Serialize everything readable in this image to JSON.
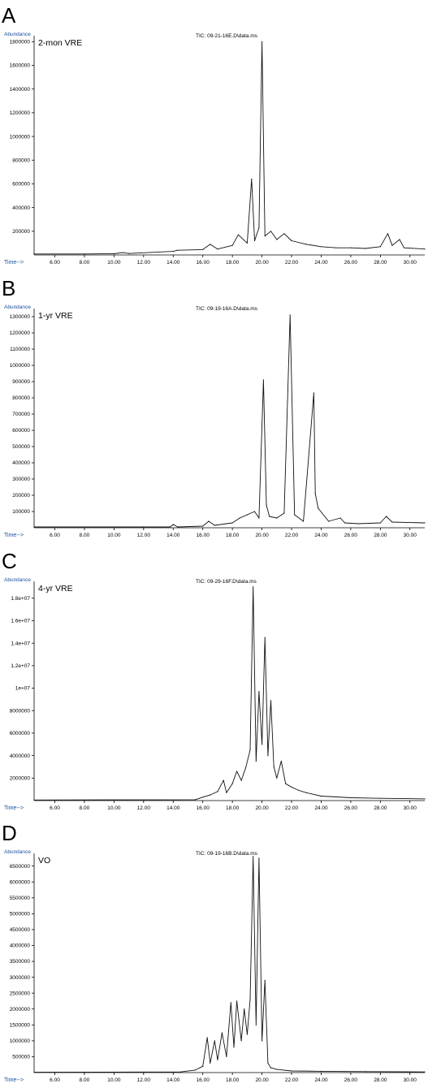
{
  "chart_data": [
    {
      "type": "line",
      "panel": "A",
      "sample_label": "2-mon VRE",
      "tic_label": "TIC: 09-21-16E.D\\data.ms",
      "ylabel": "Abundance",
      "xlabel": "Time-->",
      "xlim": [
        4.6,
        31.0
      ],
      "ylim": [
        0,
        1850000
      ],
      "xticks": [
        "6.00",
        "8.00",
        "10.00",
        "12.00",
        "14.00",
        "16.00",
        "18.00",
        "20.00",
        "22.00",
        "24.00",
        "26.00",
        "28.00",
        "30.00"
      ],
      "yticks": [
        "200000",
        "400000",
        "600000",
        "800000",
        "1000000",
        "1200000",
        "1400000",
        "1600000",
        "1800000"
      ],
      "x": [
        4.6,
        8.0,
        10.0,
        10.6,
        11.0,
        14.0,
        14.3,
        16.0,
        16.5,
        17.0,
        18.0,
        18.4,
        19.0,
        19.3,
        19.5,
        19.8,
        20.0,
        20.2,
        20.6,
        21.0,
        21.5,
        22.0,
        23.0,
        24.0,
        25.0,
        26.0,
        27.0,
        28.0,
        28.5,
        28.8,
        29.3,
        29.6,
        31.0
      ],
      "values": [
        8000,
        8000,
        10000,
        20000,
        12000,
        30000,
        40000,
        45000,
        90000,
        50000,
        80000,
        170000,
        100000,
        640000,
        120000,
        230000,
        1800000,
        160000,
        200000,
        130000,
        180000,
        120000,
        90000,
        70000,
        60000,
        60000,
        55000,
        70000,
        180000,
        80000,
        130000,
        60000,
        50000
      ]
    },
    {
      "type": "line",
      "panel": "B",
      "sample_label": "1-yr VRE",
      "tic_label": "TIC: 09-19-16A.D\\data.ms",
      "ylabel": "Abundance",
      "xlabel": "Time-->",
      "xlim": [
        4.6,
        31.0
      ],
      "ylim": [
        0,
        1350000
      ],
      "xticks": [
        "6.00",
        "8.00",
        "10.00",
        "12.00",
        "14.00",
        "16.00",
        "18.00",
        "20.00",
        "22.00",
        "24.00",
        "26.00",
        "28.00",
        "30.00"
      ],
      "yticks": [
        "100000",
        "200000",
        "300000",
        "400000",
        "500000",
        "600000",
        "700000",
        "800000",
        "900000",
        "1000000",
        "1100000",
        "1200000",
        "1300000"
      ],
      "x": [
        4.6,
        12.0,
        13.8,
        14.0,
        14.3,
        16.0,
        16.4,
        16.8,
        18.0,
        18.5,
        19.0,
        19.5,
        19.8,
        20.1,
        20.3,
        20.5,
        21.0,
        21.5,
        21.9,
        22.2,
        22.8,
        23.5,
        23.6,
        23.8,
        24.5,
        25.3,
        25.6,
        26.5,
        28.0,
        28.4,
        28.8,
        31.0
      ],
      "values": [
        5000,
        5000,
        5000,
        20000,
        5000,
        10000,
        40000,
        15000,
        30000,
        60000,
        80000,
        100000,
        60000,
        910000,
        140000,
        70000,
        60000,
        90000,
        1310000,
        80000,
        40000,
        830000,
        210000,
        120000,
        40000,
        60000,
        30000,
        25000,
        30000,
        70000,
        35000,
        30000
      ]
    },
    {
      "type": "line",
      "panel": "C",
      "sample_label": "4-yr VRE",
      "tic_label": "TIC: 09-29-16F.D\\data.ms",
      "ylabel": "Abundance",
      "xlabel": "Time-->",
      "xlim": [
        4.6,
        31.0
      ],
      "ylim": [
        0,
        19500000
      ],
      "xticks": [
        "6.00",
        "8.00",
        "10.00",
        "12.00",
        "14.00",
        "16.00",
        "18.00",
        "20.00",
        "22.00",
        "24.00",
        "26.00",
        "28.00",
        "30.00"
      ],
      "yticks": [
        "2000000",
        "4000000",
        "6000000",
        "8000000",
        "1e+07",
        "1.2e+07",
        "1.4e+07",
        "1.6e+07",
        "1.8e+07"
      ],
      "x": [
        4.6,
        15.5,
        16.0,
        16.5,
        17.0,
        17.4,
        17.6,
        18.0,
        18.3,
        18.6,
        18.9,
        19.2,
        19.4,
        19.6,
        19.8,
        20.0,
        20.2,
        20.4,
        20.6,
        20.8,
        21.0,
        21.3,
        21.6,
        22.0,
        22.5,
        23.0,
        24.0,
        26.0,
        28.0,
        31.0
      ],
      "values": [
        50000,
        80000,
        300000,
        500000,
        800000,
        1800000,
        700000,
        1500000,
        2600000,
        1800000,
        2900000,
        4500000,
        19000000,
        3500000,
        9700000,
        5000000,
        14500000,
        4000000,
        8900000,
        3000000,
        2000000,
        3500000,
        1500000,
        1200000,
        900000,
        700000,
        400000,
        250000,
        200000,
        150000
      ]
    },
    {
      "type": "line",
      "panel": "D",
      "sample_label": "VO",
      "tic_label": "TIC: 09-19-16B.D\\data.ms",
      "ylabel": "Abundance",
      "xlabel": "Time-->",
      "xlim": [
        4.6,
        31.0
      ],
      "ylim": [
        0,
        6900000
      ],
      "xticks": [
        "6.00",
        "8.00",
        "10.00",
        "12.00",
        "14.00",
        "16.00",
        "18.00",
        "20.00",
        "22.00",
        "24.00",
        "26.00",
        "28.00",
        "30.00"
      ],
      "yticks": [
        "500000",
        "1000000",
        "1500000",
        "2000000",
        "2500000",
        "3000000",
        "3500000",
        "4000000",
        "4500000",
        "5000000",
        "5500000",
        "6000000",
        "6500000"
      ],
      "x": [
        4.6,
        14.5,
        15.5,
        16.0,
        16.3,
        16.5,
        16.8,
        17.0,
        17.3,
        17.6,
        17.9,
        18.1,
        18.3,
        18.6,
        18.8,
        19.0,
        19.2,
        19.4,
        19.6,
        19.8,
        20.0,
        20.2,
        20.4,
        20.6,
        21.0,
        22.0,
        24.0,
        27.0,
        31.0
      ],
      "values": [
        10000,
        20000,
        80000,
        200000,
        1100000,
        300000,
        1000000,
        400000,
        1250000,
        500000,
        2200000,
        800000,
        2250000,
        1000000,
        2000000,
        1200000,
        2300000,
        6800000,
        1500000,
        6750000,
        1000000,
        2900000,
        300000,
        150000,
        100000,
        50000,
        40000,
        30000,
        20000
      ]
    }
  ]
}
